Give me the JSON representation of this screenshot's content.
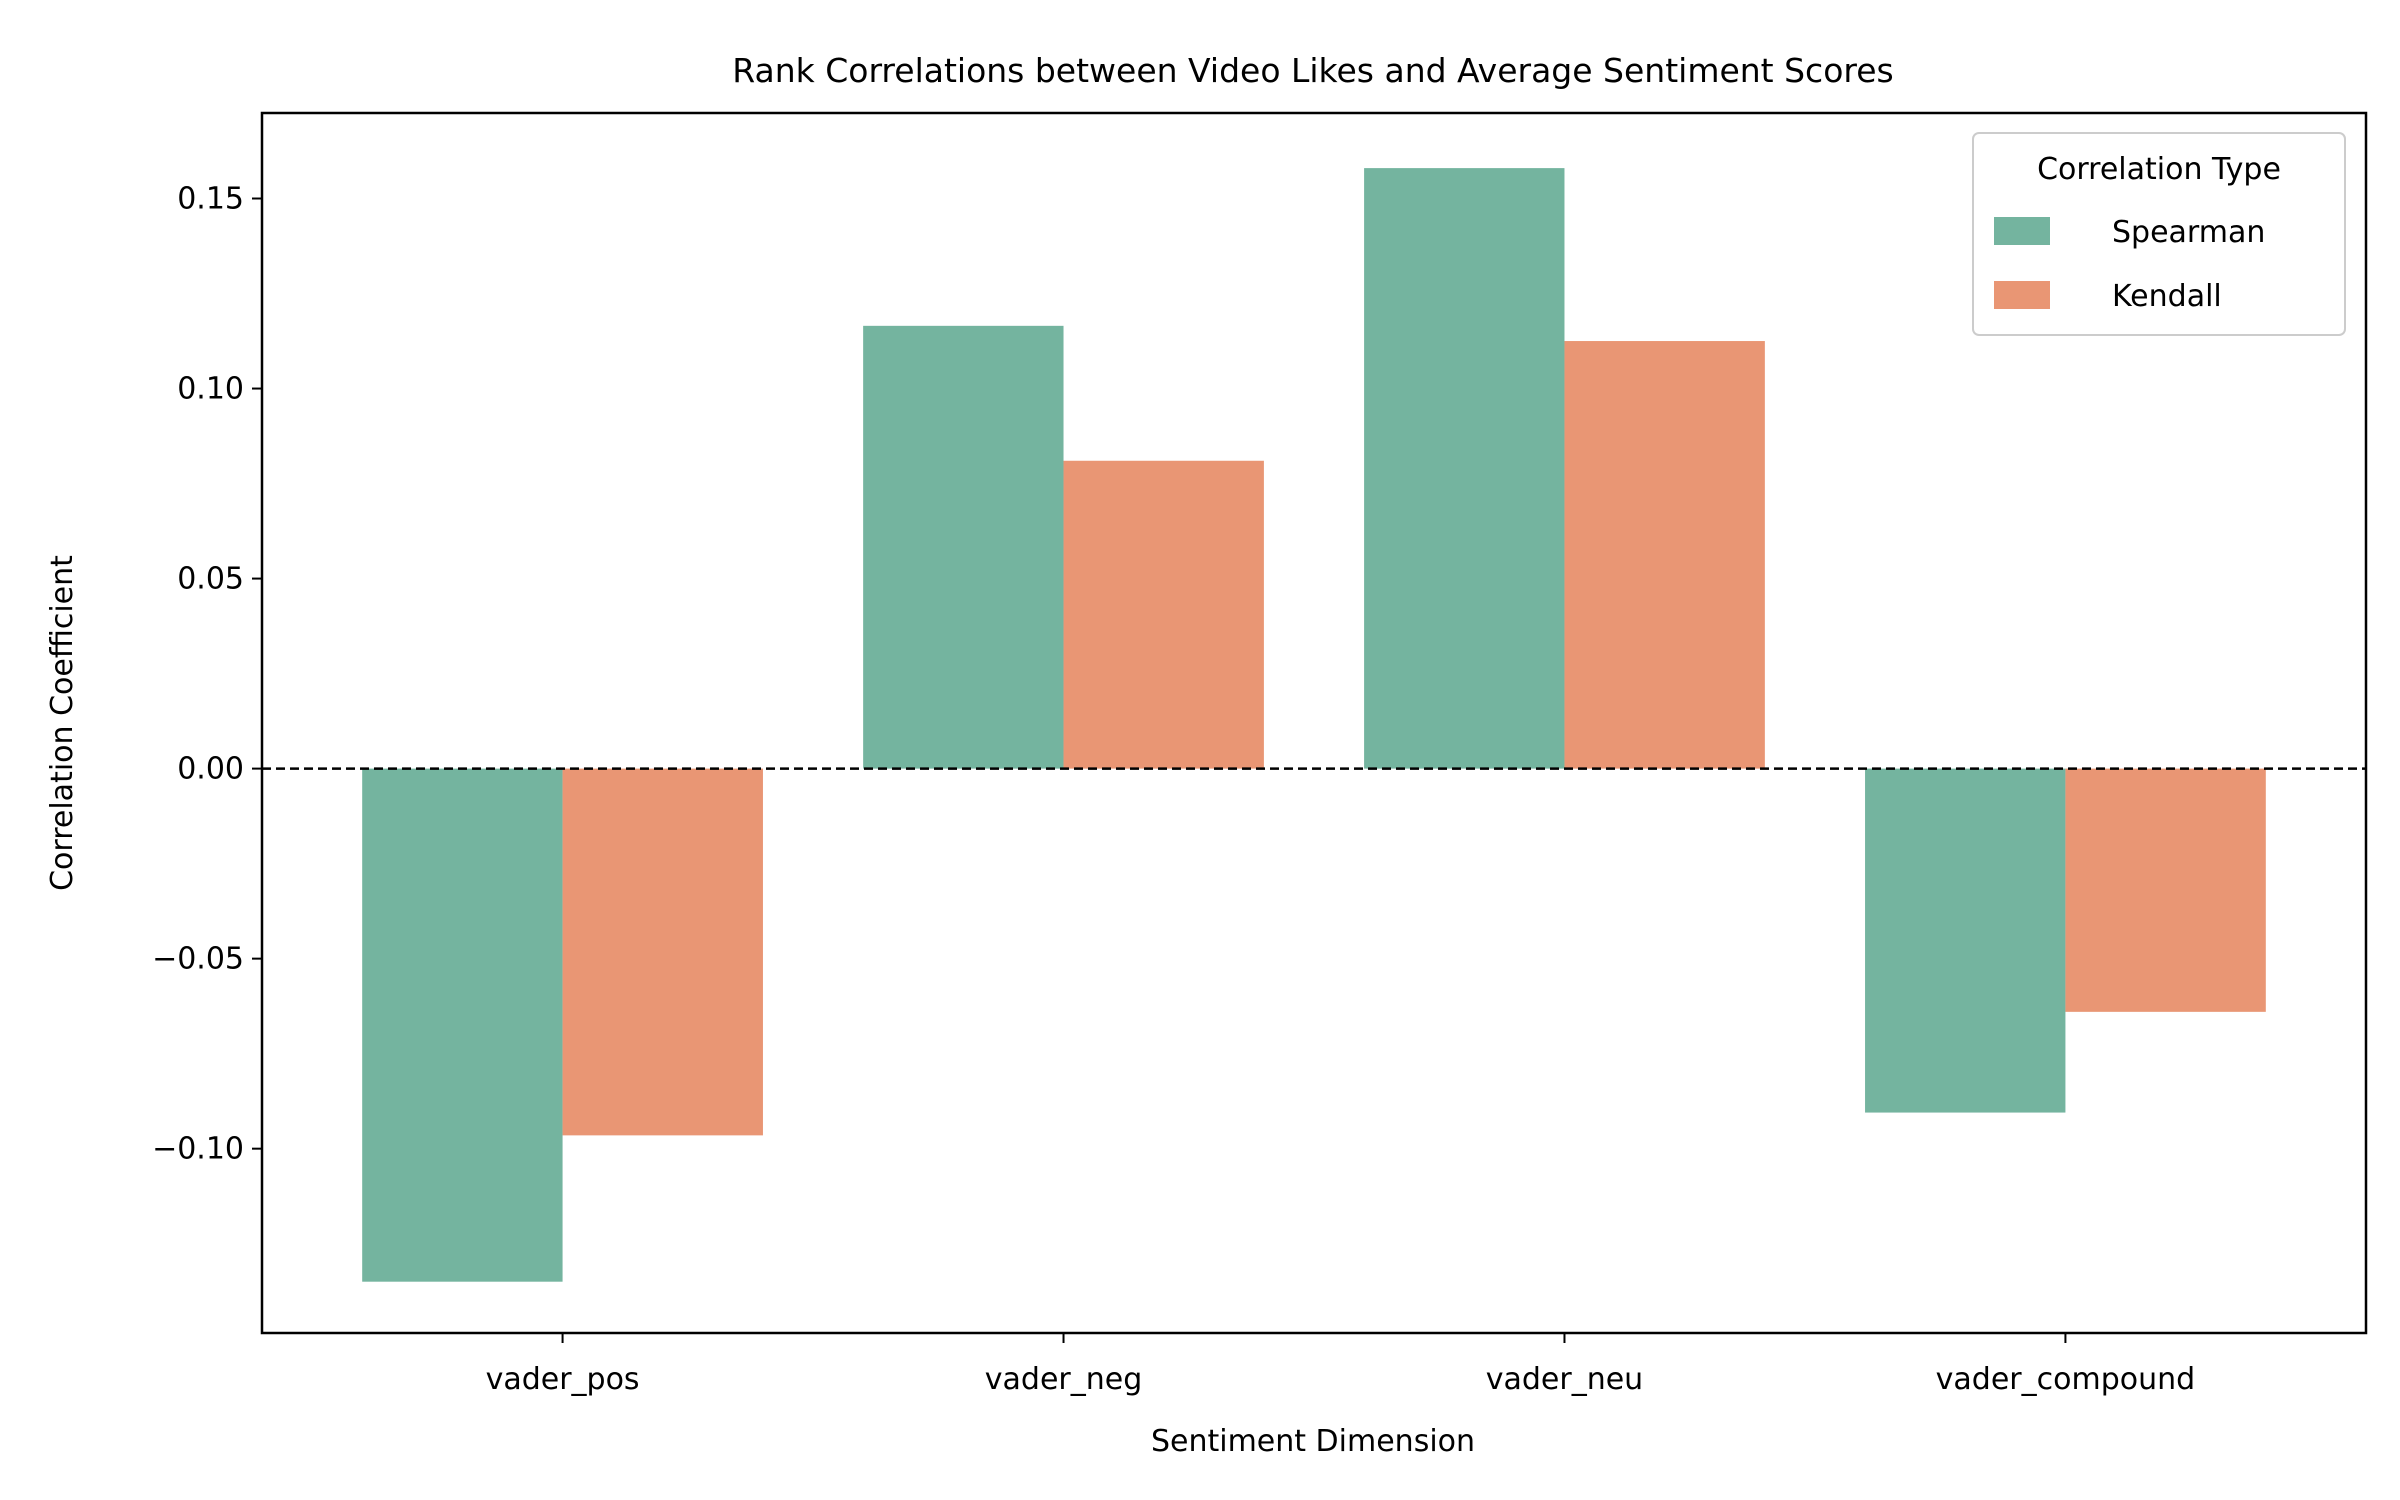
{
  "chart_data": {
    "type": "bar",
    "title": "Rank Correlations between Video Likes and Average Sentiment Scores",
    "xlabel": "Sentiment Dimension",
    "ylabel": "Correlation Coefficient",
    "categories": [
      "vader_pos",
      "vader_neg",
      "vader_neu",
      "vader_compound"
    ],
    "series": [
      {
        "name": "Spearman",
        "color": "#74b49f",
        "values": [
          -0.135,
          0.1165,
          0.158,
          -0.0905
        ]
      },
      {
        "name": "Kendall",
        "color": "#e99674",
        "values": [
          -0.0965,
          0.081,
          0.1125,
          -0.064
        ]
      }
    ],
    "ylim": [
      -0.1485,
      0.1725
    ],
    "yticks": [
      -0.1,
      -0.05,
      0.0,
      0.05,
      0.1,
      0.15
    ],
    "ytick_labels": [
      "−0.10",
      "−0.05",
      "0.00",
      "0.05",
      "0.10",
      "0.15"
    ],
    "reference_line": {
      "y": 0,
      "style": "dashed",
      "color": "#000000"
    },
    "grid": false,
    "legend": {
      "title": "Correlation Type",
      "position": "top-right"
    }
  }
}
